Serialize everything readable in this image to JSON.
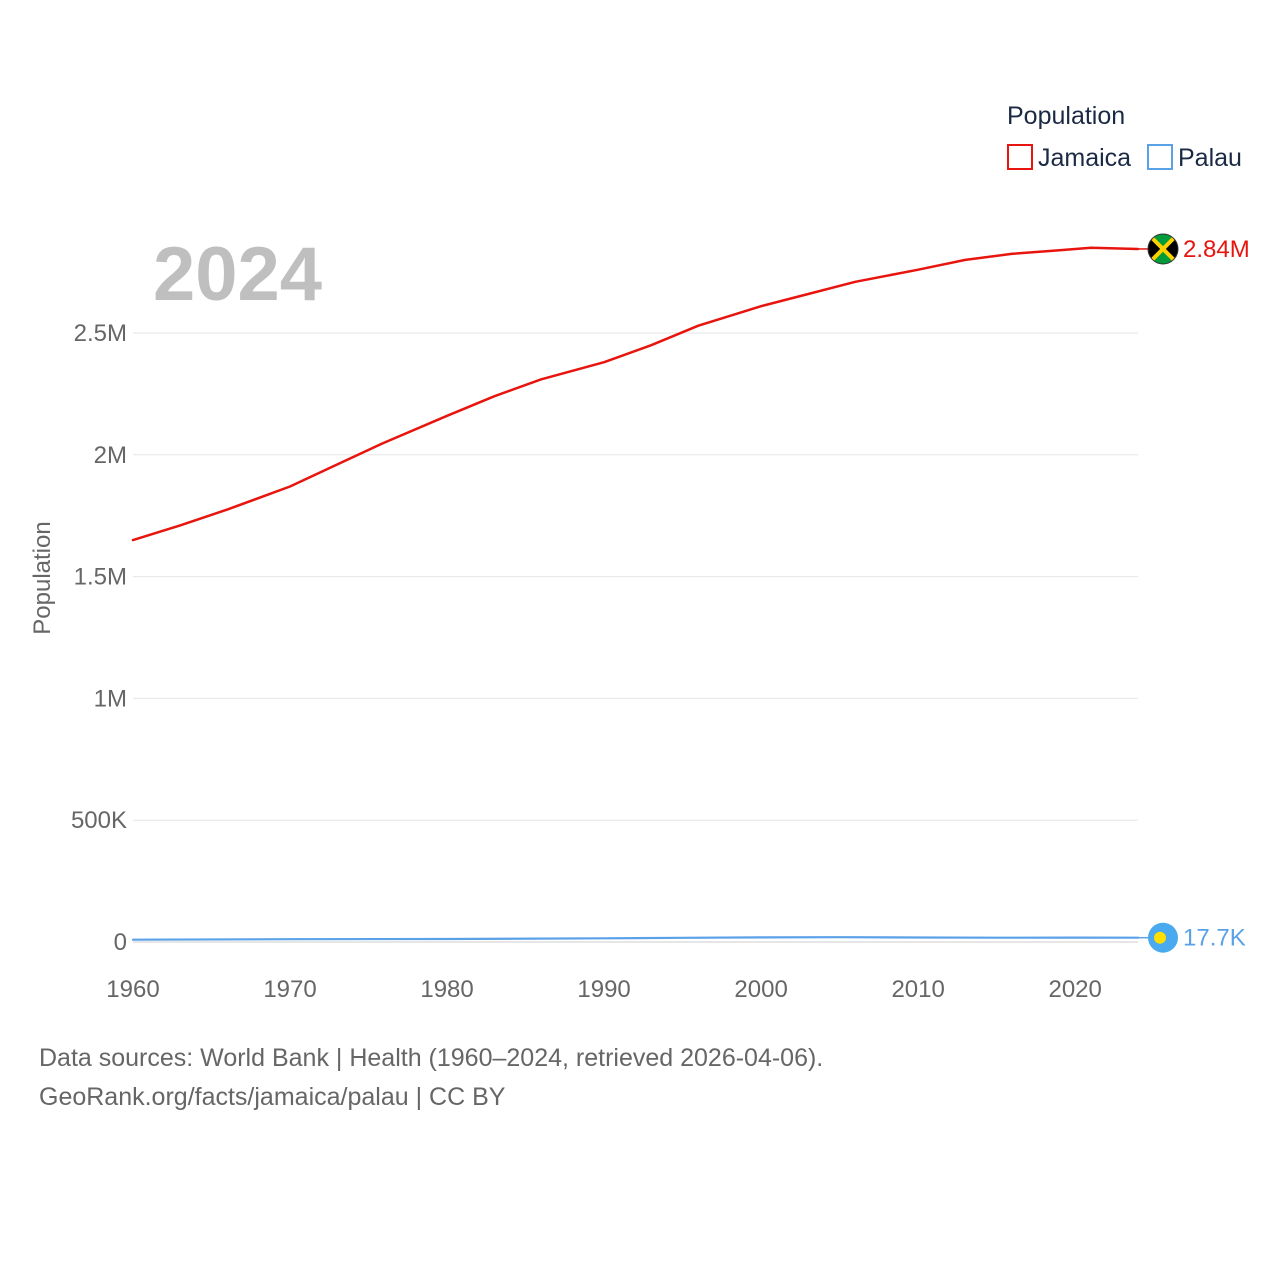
{
  "chart_data": {
    "type": "line",
    "title": "",
    "xlabel": "",
    "ylabel": "Population",
    "year_display": "2024",
    "xlim": [
      1960,
      2024
    ],
    "ylim": [
      0,
      2900000
    ],
    "x_ticks": [
      1960,
      1970,
      1980,
      1990,
      2000,
      2010,
      2020
    ],
    "y_ticks": [
      0,
      500000,
      1000000,
      1500000,
      2000000,
      2500000
    ],
    "y_tick_labels": [
      "0",
      "500K",
      "1M",
      "1.5M",
      "2M",
      "2.5M"
    ],
    "legend": {
      "title": "Population",
      "position": "top-right"
    },
    "series": [
      {
        "name": "Jamaica",
        "color": "#e8140e",
        "end_label": "2.84M",
        "flag_icon": "jamaica-flag-icon",
        "x": [
          1960,
          1963,
          1966,
          1970,
          1973,
          1976,
          1980,
          1983,
          1986,
          1990,
          1993,
          1996,
          2000,
          2003,
          2006,
          2010,
          2013,
          2016,
          2019,
          2021,
          2024
        ],
        "values": [
          1650000,
          1710000,
          1775000,
          1870000,
          1960000,
          2050000,
          2160000,
          2240000,
          2310000,
          2380000,
          2450000,
          2530000,
          2610000,
          2660000,
          2710000,
          2760000,
          2800000,
          2825000,
          2840000,
          2850000,
          2845000
        ]
      },
      {
        "name": "Palau",
        "color": "#5aa1e8",
        "end_label": "17.7K",
        "flag_icon": "palau-flag-icon",
        "x": [
          1960,
          1970,
          1980,
          1990,
          1995,
          2000,
          2005,
          2010,
          2015,
          2020,
          2024
        ],
        "values": [
          9600,
          11400,
          12300,
          15100,
          17100,
          19000,
          19900,
          18600,
          17700,
          17900,
          17700
        ]
      }
    ]
  },
  "footer": {
    "line1": "Data sources: World Bank | Health (1960–2024, retrieved 2026-04-06).",
    "line2": "GeoRank.org/facts/jamaica/palau | CC BY"
  }
}
